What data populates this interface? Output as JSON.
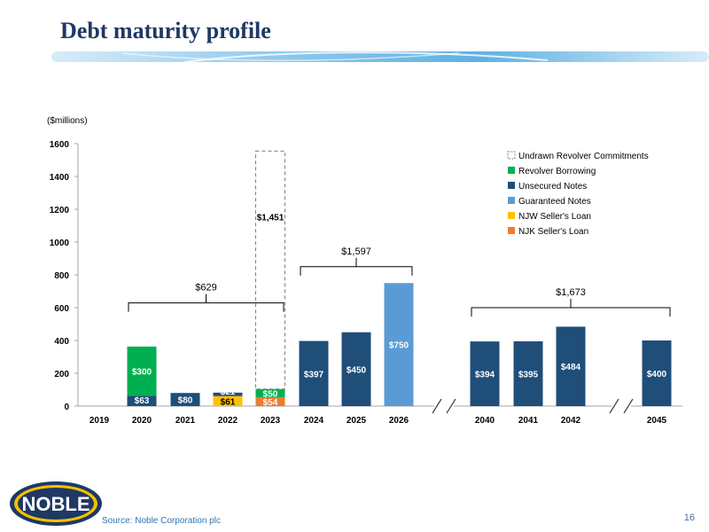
{
  "slide": {
    "title": "Debt maturity profile",
    "source": "Source: Noble Corporation plc",
    "page_number": "16",
    "logo_text": "NOBLE"
  },
  "colors": {
    "revolver": "#00b050",
    "unsecured": "#1f4e79",
    "guaranteed": "#5b9bd5",
    "njw": "#ffc000",
    "njk": "#ed7d31",
    "undrawn_border": "#7f7f7f",
    "title": "#1f3864"
  },
  "chart_data": {
    "type": "bar",
    "stacked": true,
    "unit_label": "($millions)",
    "ylim": [
      0,
      1600
    ],
    "yticks": [
      0,
      200,
      400,
      600,
      800,
      1000,
      1200,
      1400,
      1600
    ],
    "categories": [
      "2019",
      "2020",
      "2021",
      "2022",
      "2023",
      "2024",
      "2025",
      "2026",
      "2040",
      "2041",
      "2042",
      "2045"
    ],
    "axis_breaks": [
      "after-2026",
      "after-2042"
    ],
    "series": [
      {
        "name": "NJK Seller's Loan",
        "key": "njk",
        "values": [
          0,
          0,
          0,
          0,
          54,
          0,
          0,
          0,
          0,
          0,
          0,
          0
        ]
      },
      {
        "name": "NJW Seller's Loan",
        "key": "njw",
        "values": [
          0,
          0,
          0,
          61,
          0,
          0,
          0,
          0,
          0,
          0,
          0,
          0
        ]
      },
      {
        "name": "Guaranteed Notes",
        "key": "guaranteed",
        "values": [
          0,
          0,
          0,
          0,
          0,
          0,
          0,
          750,
          0,
          0,
          0,
          0
        ]
      },
      {
        "name": "Unsecured Notes",
        "key": "unsecured",
        "values": [
          0,
          63,
          80,
          21,
          0,
          397,
          450,
          0,
          394,
          395,
          484,
          400
        ]
      },
      {
        "name": "Revolver Borrowing",
        "key": "revolver",
        "values": [
          0,
          300,
          0,
          0,
          50,
          0,
          0,
          0,
          0,
          0,
          0,
          0
        ]
      },
      {
        "name": "Undrawn Revolver Commitments",
        "key": "undrawn",
        "values": [
          0,
          0,
          0,
          0,
          1451,
          0,
          0,
          0,
          0,
          0,
          0,
          0
        ]
      }
    ],
    "data_labels": [
      {
        "category": "2020",
        "series": "unsecured",
        "text": "$63"
      },
      {
        "category": "2020",
        "series": "revolver",
        "text": "$300"
      },
      {
        "category": "2021",
        "series": "unsecured",
        "text": "$80"
      },
      {
        "category": "2022",
        "series": "njw",
        "text": "$61"
      },
      {
        "category": "2022",
        "series": "unsecured",
        "text": "$21"
      },
      {
        "category": "2023",
        "series": "njk",
        "text": "$54"
      },
      {
        "category": "2023",
        "series": "revolver",
        "text": "$50"
      },
      {
        "category": "2023",
        "series": "undrawn",
        "text": "$1,451"
      },
      {
        "category": "2024",
        "series": "unsecured",
        "text": "$397"
      },
      {
        "category": "2025",
        "series": "unsecured",
        "text": "$450"
      },
      {
        "category": "2026",
        "series": "guaranteed",
        "text": "$750"
      },
      {
        "category": "2040",
        "series": "unsecured",
        "text": "$394"
      },
      {
        "category": "2041",
        "series": "unsecured",
        "text": "$395"
      },
      {
        "category": "2042",
        "series": "unsecured",
        "text": "$484"
      },
      {
        "category": "2045",
        "series": "unsecured",
        "text": "$400"
      }
    ],
    "brackets": [
      {
        "from": "2020",
        "to": "2023",
        "value": 629,
        "label": "$629"
      },
      {
        "from": "2024",
        "to": "2026",
        "value": 850,
        "label": "$1,597"
      },
      {
        "from": "2040",
        "to": "2045",
        "value": 600,
        "label": "$1,673"
      }
    ],
    "legend": {
      "placement": "top-right",
      "order": [
        "undrawn",
        "revolver",
        "unsecured",
        "guaranteed",
        "njw",
        "njk"
      ]
    }
  }
}
